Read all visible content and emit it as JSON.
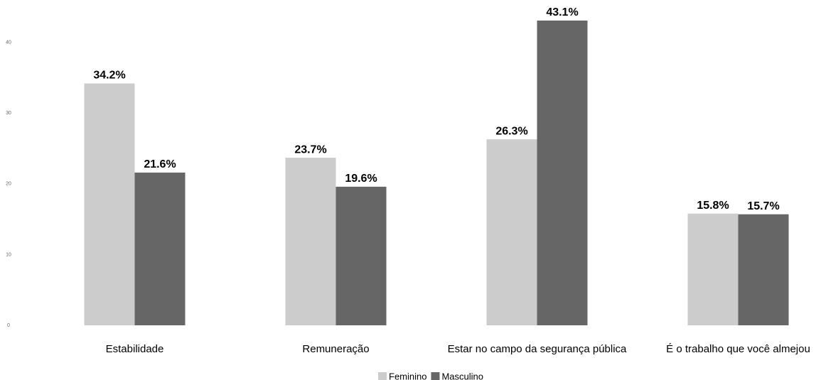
{
  "chart_data": {
    "type": "bar",
    "categories": [
      "Estabilidade",
      "Remuneração",
      "Estar no campo da segurança pública",
      "É o trabalho que você almejou"
    ],
    "series": [
      {
        "name": "Feminino",
        "color": "#cccccc",
        "values": [
          34.2,
          23.7,
          26.3,
          15.8
        ],
        "value_labels": [
          "34.2%",
          "23.7%",
          "26.3%",
          "15.8%"
        ]
      },
      {
        "name": "Masculino",
        "color": "#666666",
        "values": [
          21.6,
          19.6,
          43.1,
          15.7
        ],
        "value_labels": [
          "21.6%",
          "19.6%",
          "43.1%",
          "15.7%"
        ]
      }
    ],
    "ylim": [
      0,
      45
    ],
    "yticks": [
      0,
      10,
      20,
      30,
      40
    ],
    "grid": false,
    "legend": "bottom"
  }
}
